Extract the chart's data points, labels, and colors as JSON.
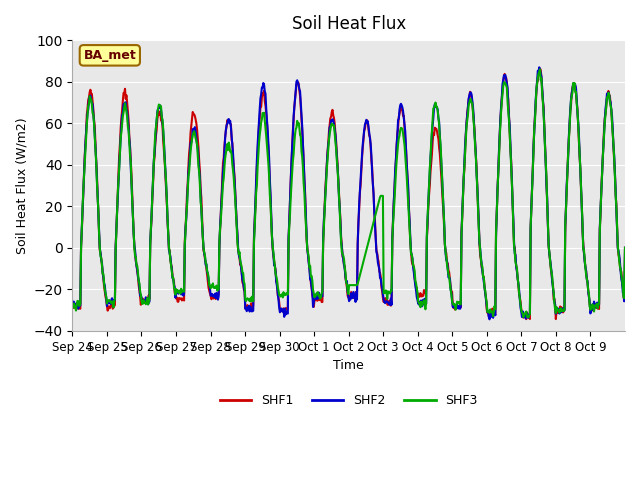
{
  "title": "Soil Heat Flux",
  "ylabel": "Soil Heat Flux (W/m2)",
  "xlabel": "Time",
  "ylim": [
    -40,
    100
  ],
  "yticks": [
    -40,
    -20,
    0,
    20,
    40,
    60,
    80,
    100
  ],
  "annotation": "BA_met",
  "series_labels": [
    "SHF1",
    "SHF2",
    "SHF3"
  ],
  "series_colors": [
    "#cc0000",
    "#0000cc",
    "#00aa00"
  ],
  "background_color": "#e8e8e8",
  "x_tick_labels": [
    "Sep 24",
    "Sep 25",
    "Sep 26",
    "Sep 27",
    "Sep 28",
    "Sep 29",
    "Sep 30",
    "Oct 1",
    "Oct 2",
    "Oct 3",
    "Oct 4",
    "Oct 5",
    "Oct 6",
    "Oct 7",
    "Oct 8",
    "Oct 9"
  ],
  "linewidth": 1.5
}
